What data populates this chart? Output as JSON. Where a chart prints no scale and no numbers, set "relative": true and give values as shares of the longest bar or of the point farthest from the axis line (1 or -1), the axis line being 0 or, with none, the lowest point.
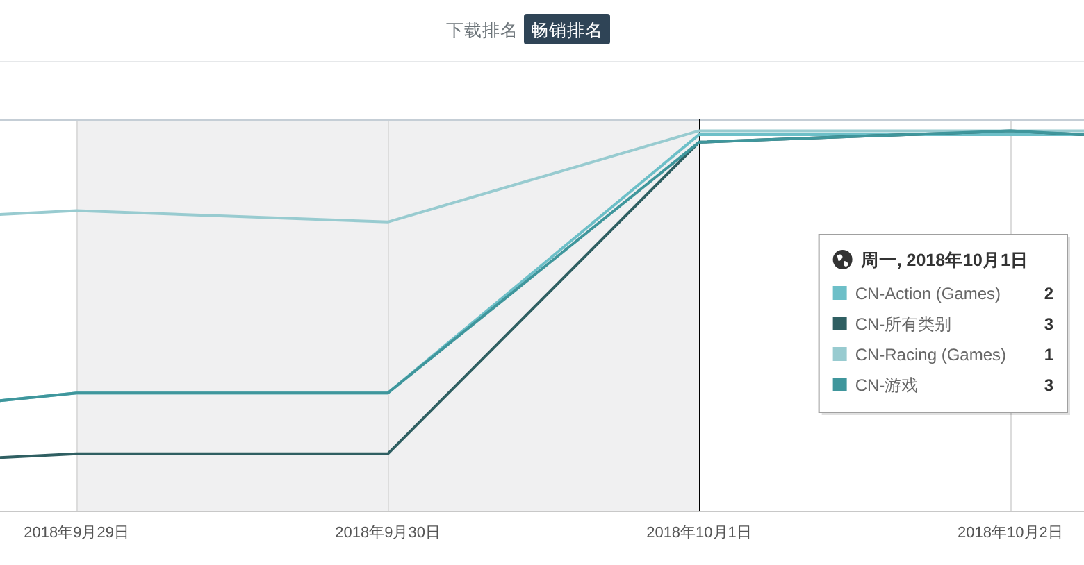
{
  "chart_data": {
    "type": "line",
    "relative": true,
    "annotations": [
      "下载排名",
      "畅销排名",
      "2",
      "3",
      "1",
      "3"
    ],
    "legend_title": "周一, 2018年10月1日",
    "x": [
      "2018-09-28T18:06",
      "2018-09-29",
      "2018-09-30",
      "2018-10-01",
      "2018-10-02",
      "2018-10-02T05:41"
    ],
    "xlim": [
      "2018-09-28T18:06",
      "2018-10-02T05:41"
    ],
    "xticks": [
      {
        "value": "2018-09-29",
        "label": "2018年9月29日"
      },
      {
        "value": "2018-09-30",
        "label": "2018年9月30日"
      },
      {
        "value": "2018-10-01",
        "label": "2018年10月1日"
      },
      {
        "value": "2018-10-02",
        "label": "2018年10月2日"
      }
    ],
    "series": [
      {
        "name": "CN-Action (Games)",
        "color": "#6dbfc8",
        "values": [
          0.29,
          0.31,
          0.31,
          0.99,
          0.99,
          0.99
        ]
      },
      {
        "name": "CN-所有类别",
        "color": "#2f5f62",
        "values": [
          0.14,
          0.15,
          0.15,
          0.97,
          1.0,
          0.99
        ]
      },
      {
        "name": "CN-Racing (Games)",
        "color": "#98cbd0",
        "values": [
          0.78,
          0.79,
          0.76,
          1.0,
          1.0,
          1.0
        ]
      },
      {
        "name": "CN-游戏",
        "color": "#3f969c",
        "values": [
          0.29,
          0.31,
          0.31,
          0.97,
          1.0,
          0.99
        ]
      }
    ],
    "bands": [
      {
        "axis": "x",
        "from": "2018-09-29",
        "to": "2018-10-01",
        "color": "#f0f0f1"
      }
    ],
    "ref_lines": [
      {
        "axis": "x",
        "value": "2018-10-01",
        "color": "#000000"
      }
    ],
    "grid": "x",
    "legend": "right",
    "tick_labels": "x",
    "line_style": "solid"
  }
}
